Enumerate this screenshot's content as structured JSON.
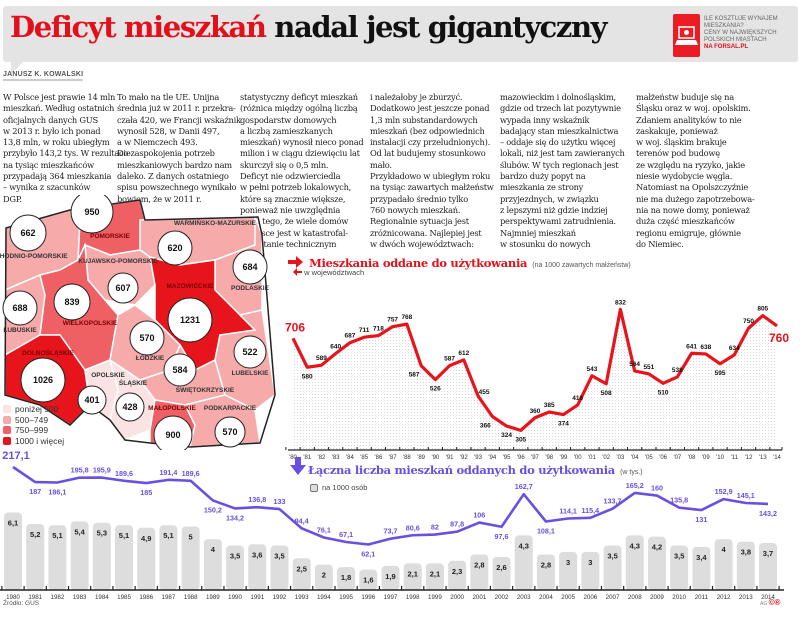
{
  "header": {
    "title_red": "Deficyt mieszkań",
    "title_black": " nadal jest gigantyczny",
    "promo_lines": [
      "Ile kosztuje wynajem",
      "mieszkania?",
      "Ceny w największych",
      "polskich miastach"
    ],
    "promo_link": "NA FORSAL.PL",
    "author": "JANUSZ K. KOWALSKI"
  },
  "article": {
    "columns": [
      [
        "W Polsce jest prawie 14 mln",
        "mieszkań. Według ostatnich",
        "oficjalnych danych GUS",
        "w 2013 r. było ich ponad",
        "13,8 mln, w roku ubiegłym",
        "przybyło 143,2 tys. W rezultacie",
        "na tysiąc mieszkańców",
        "przypadają 364 mieszkania",
        "– wynika z szacunków",
        "DGP."
      ],
      [
        "To mało na tle UE. Unijna",
        "średnia już w 2011 r. przekra-",
        "czała 420, we Francji wskaźnik",
        "wynosił 528, w Danii 497,",
        "a w Niemczech 493.",
        "Do zaspokojenia potrzeb",
        "mieszkaniowych bardzo nam",
        "daleko. Z danych ostatniego",
        " spisu powszechnego wynikało",
        "      bowiem, że w 2011 r."
      ],
      [
        "statystyczny deficyt mieszkań",
        "(różnica między ogólną liczbą",
        "gospodarstw domowych",
        "a liczbą zamieszkanych",
        "mieszkań) wynosił nieco ponad",
        "milion i w ciągu dziewięciu lat",
        "skurczył się o 0,5 mln.",
        "Deficyt nie odzwierciedla",
        "w pełni potrzeb lokalowych,",
        "które są znacznie większe,",
        "  ponieważ nie uwzględnia",
        "     m.in. tego, że wiele domów",
        "     w Polsce jest w katastrofal-",
        "       nym stanie technicznym"
      ],
      [
        "i należałoby je zburzyć.",
        "Dodatkowo jest jeszcze ponad",
        "1,3 mln substandardowych",
        "mieszkań (bez odpowiednich",
        "instalacji czy przeludnionych).",
        "Od lat budujemy stosunkowo",
        "mało.",
        "Przykładowo w ubiegłym roku",
        "na tysiąc zawartych małżeństw",
        "przypadało średnio tylko",
        "760 nowych mieszkań.",
        "Regionalnie sytuacja jest",
        "zróżnicowana. Najlepiej jest",
        "w dwóch województwach:"
      ],
      [
        "mazowieckim i dolnośląskim,",
        "gdzie od trzech lat pozytywnie",
        "wypada inny wskaźnik",
        "badający stan mieszkalnictwa",
        "– oddaje się do użytku więcej",
        "lokali, niż jest tam zawieranych",
        "ślubów. W tych regionach jest",
        "bardzo duży popyt na",
        "mieszkania ze strony",
        "przyjezdnych, w związku",
        "z lepszymi niż gdzie indziej",
        "perspektywami zatrudnienia.",
        "Najmniej mieszkań",
        "w stosunku do nowych"
      ],
      [
        "małżeństw buduje się na",
        "Śląsku oraz w woj. opolskim.",
        "Zdaniem analityków to nie",
        "zaskakuje, ponieważ",
        "w woj. śląskim brakuje",
        "terenów pod budowę",
        "ze względu na ryzyko, jakie",
        "niesie wydobycie węgla.",
        "Natomiast na Opolszczyźnie",
        "nie ma dużego zapotrzebowa-",
        "nia na nowe domy, ponieważ",
        "duża część mieszkańców",
        "regionu emigruje, głównie",
        "do Niemiec."
      ]
    ]
  },
  "map": {
    "legend": [
      {
        "label": "poniżej 500",
        "color": "#fbe3e3"
      },
      {
        "label": "500–749",
        "color": "#f6aaaa"
      },
      {
        "label": "750–999",
        "color": "#ef6065"
      },
      {
        "label": "1000 i więcej",
        "color": "#e8141c"
      }
    ],
    "regions": [
      {
        "name": "POMORSKIE",
        "value": 950,
        "color": "#ef6065"
      },
      {
        "name": "ZACHODNIO-POMORSKIE",
        "value": 662,
        "color": "#f6aaaa"
      },
      {
        "name": "WARMIŃSKO-MAZURSKIE",
        "value": 620,
        "color": "#f6aaaa"
      },
      {
        "name": "KUJAWSKO-POMORSKIE",
        "value": 607,
        "color": "#f6aaaa"
      },
      {
        "name": "PODLASKIE",
        "value": 684,
        "color": "#f6aaaa"
      },
      {
        "name": "LUBUSKIE",
        "value": 688,
        "color": "#f6aaaa"
      },
      {
        "name": "WIELKOPOLSKIE",
        "value": 839,
        "color": "#ef6065"
      },
      {
        "name": "MAZOWIECKIE",
        "value": 1231,
        "color": "#e8141c"
      },
      {
        "name": "ŁÓDZKIE",
        "value": 570,
        "color": "#f6aaaa"
      },
      {
        "name": "DOLNOŚLĄSKIE",
        "value": 1026,
        "color": "#e8141c"
      },
      {
        "name": "LUBELSKIE",
        "value": 522,
        "color": "#f6aaaa"
      },
      {
        "name": "ŚWIĘTOKRZYSKIE",
        "value": 584,
        "color": "#f6aaaa"
      },
      {
        "name": "OPOLSKIE",
        "value": 401,
        "color": "#fbe3e3"
      },
      {
        "name": "ŚLĄSKIE",
        "value": 428,
        "color": "#fbe3e3"
      },
      {
        "name": "MAŁOPOLSKIE",
        "value": 900,
        "color": "#ef6065"
      },
      {
        "name": "PODKARPACKIE",
        "value": 570,
        "color": "#f6aaaa"
      }
    ]
  },
  "chart_data": [
    {
      "type": "line",
      "title": "Mieszkania oddane do użytkowania",
      "subtitle": "(na 1000 zawartych małżeństw)",
      "note": "w województwach",
      "x": [
        "'80",
        "'81",
        "'82",
        "'83",
        "'84",
        "'85",
        "'86",
        "'87",
        "'88",
        "'89",
        "'90",
        "'91",
        "'92",
        "'93",
        "'94",
        "'95",
        "'96",
        "'97",
        "'98",
        "'99",
        "'00",
        "'01",
        "'02",
        "'03",
        "'04",
        "'05",
        "'06",
        "'07",
        "'08",
        "'09",
        "'10",
        "'11",
        "'12",
        "'13",
        "'14"
      ],
      "series": [
        {
          "name": "na 1000 zawartych małżeństw",
          "color": "#e8141c",
          "values": [
            706,
            580,
            589,
            640,
            687,
            711,
            718,
            757,
            768,
            587,
            526,
            587,
            612,
            455,
            366,
            324,
            305,
            360,
            385,
            374,
            416,
            543,
            508,
            832,
            564,
            551,
            510,
            538,
            641,
            638,
            595,
            634,
            750,
            805,
            760
          ]
        }
      ],
      "ylim": [
        250,
        860
      ],
      "grid": "dotted background"
    },
    {
      "type": "bar+line",
      "title": "Łączna liczba mieszkań oddanych do użytkowania",
      "subtitle": "(w tys.)",
      "legend": "na 1000 osób",
      "x": [
        "1980",
        "1981",
        "1982",
        "1983",
        "1984",
        "1985",
        "1986",
        "1987",
        "1988",
        "1989",
        "1990",
        "1991",
        "1992",
        "1993",
        "1994",
        "1995",
        "1996",
        "1997",
        "1998",
        "1999",
        "2000",
        "2001",
        "2002",
        "2003",
        "2004",
        "2005",
        "2006",
        "2007",
        "2008",
        "2009",
        "2010",
        "2011",
        "2012",
        "2013",
        "2014"
      ],
      "series": [
        {
          "name": "Łączna liczba (tys.)",
          "type": "line",
          "color": "#6a4fe0",
          "values": [
            217.1,
            187,
            186.1,
            195.8,
            195.9,
            189.6,
            185,
            191.4,
            189.6,
            150.2,
            134.2,
            136.8,
            133,
            94.4,
            76.1,
            67.1,
            62.1,
            73.7,
            80.6,
            82,
            87.8,
            106,
            97.6,
            162.7,
            108.1,
            114.1,
            115.4,
            133.7,
            165.2,
            160,
            135.8,
            131,
            152.9,
            145.1,
            143.2
          ],
          "labels": [
            "217,1",
            "187",
            "186,1",
            "195,8",
            "195,9",
            "189,6",
            "185",
            "191,4",
            "189,6",
            "150,2",
            "134,2",
            "136,8",
            "133",
            "94,4",
            "76,1",
            "67,1",
            "62,1",
            "73,7",
            "80,6",
            "82",
            "87,8",
            "106",
            "97,6",
            "162,7",
            "108,1",
            "114,1",
            "115,4",
            "133,7",
            "165,2",
            "160",
            "135,8",
            "131",
            "152,9",
            "145,1",
            "143,2"
          ]
        },
        {
          "name": "na 1000 osób",
          "type": "bar",
          "color": "#dddddd",
          "values": [
            6.1,
            5.2,
            5.1,
            5.4,
            5.3,
            5.1,
            4.9,
            5.1,
            5,
            4,
            3.5,
            3.6,
            3.5,
            2.5,
            2,
            1.8,
            1.6,
            1.9,
            2.1,
            2.1,
            2.3,
            2.8,
            2.6,
            4.3,
            2.8,
            3,
            3,
            3.5,
            4.3,
            4.2,
            3.5,
            3.4,
            4,
            3.8,
            3.7
          ],
          "labels": [
            "6,1",
            "5,2",
            "5,1",
            "5,4",
            "5,3",
            "5,1",
            "4,9",
            "5,1",
            "5",
            "4",
            "3,5",
            "3,6",
            "3,5",
            "2,5",
            "2",
            "1,8",
            "1,6",
            "1,9",
            "2,1",
            "2,1",
            "2,3",
            "2,8",
            "2,6",
            "4,3",
            "2,8",
            "3",
            "3",
            "3,5",
            "4,3",
            "4,2",
            "3,5",
            "3,4",
            "4",
            "3,8",
            "3,7"
          ]
        }
      ]
    }
  ],
  "footer": {
    "source": "Źródło: GUS",
    "credit": "AG",
    "credit_mark": "©®"
  }
}
